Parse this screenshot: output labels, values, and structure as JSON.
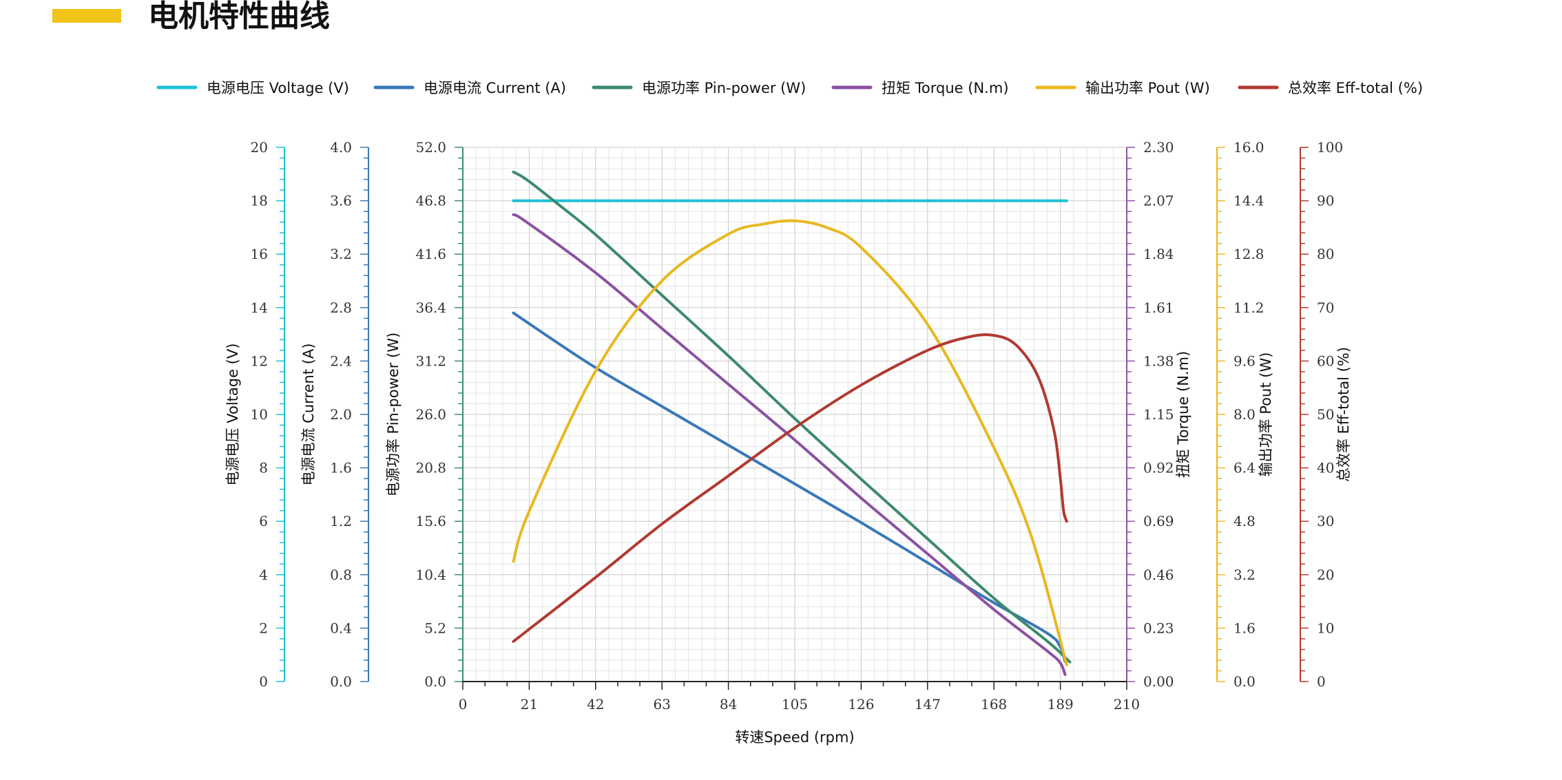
{
  "page": {
    "title": "电机特性曲线",
    "title_bar_color": "#f0c419"
  },
  "chart_data": {
    "type": "line",
    "xlabel": "转速Speed (rpm)",
    "xlim": [
      0,
      210
    ],
    "xticks": [
      "0",
      "21",
      "42",
      "63",
      "84",
      "105",
      "126",
      "147",
      "168",
      "189",
      "210"
    ],
    "grid": true,
    "legend_position": "top",
    "axes": [
      {
        "id": "voltage",
        "label": "电源电压 Voltage (V)",
        "side": "left",
        "min": 0,
        "max": 20,
        "color": "#1ec0d3",
        "ticks": [
          "0",
          "2",
          "4",
          "6",
          "8",
          "10",
          "12",
          "14",
          "16",
          "18",
          "20"
        ]
      },
      {
        "id": "current",
        "label": "电源电流 Current (A)",
        "side": "left",
        "min": 0,
        "max": 4.0,
        "color": "#3a78b8",
        "ticks": [
          "0.0",
          "0.4",
          "0.8",
          "1.2",
          "1.6",
          "2.0",
          "2.4",
          "2.8",
          "3.2",
          "3.6",
          "4.0"
        ]
      },
      {
        "id": "pin",
        "label": "电源功率 Pin-power (W)",
        "side": "left",
        "min": 0,
        "max": 52,
        "color": "#3d8a6e",
        "ticks": [
          "0.0",
          "5.2",
          "10.4",
          "15.6",
          "20.8",
          "26.0",
          "31.2",
          "36.4",
          "41.6",
          "46.8",
          "52.0"
        ]
      },
      {
        "id": "torque",
        "label": "扭矩 Torque (N.m)",
        "side": "right",
        "min": 0,
        "max": 2.3,
        "color": "#8b52a0",
        "ticks": [
          "0.00",
          "0.23",
          "0.46",
          "0.69",
          "0.92",
          "1.15",
          "1.38",
          "1.61",
          "1.84",
          "2.07",
          "2.30"
        ]
      },
      {
        "id": "pout",
        "label": "输出功率 Pout (W)",
        "side": "right",
        "min": 0,
        "max": 16,
        "color": "#e8b820",
        "ticks": [
          "0.0",
          "1.6",
          "3.2",
          "4.8",
          "6.4",
          "8.0",
          "9.6",
          "11.2",
          "12.8",
          "14.4",
          "16.0"
        ]
      },
      {
        "id": "eff",
        "label": "总效率 Eff-total (%)",
        "side": "right",
        "min": 0,
        "max": 100,
        "color": "#b03a30",
        "ticks": [
          "0",
          "10",
          "20",
          "30",
          "40",
          "50",
          "60",
          "70",
          "80",
          "90",
          "100"
        ]
      }
    ],
    "series": [
      {
        "name": "电源电压 Voltage (V)",
        "axis": "voltage",
        "color": "#1ec0d3",
        "x": [
          16,
          60,
          100,
          140,
          180,
          191
        ],
        "y": [
          18,
          18,
          18,
          18,
          18,
          18
        ]
      },
      {
        "name": "电源电流 Current (A)",
        "axis": "current",
        "color": "#3a78b8",
        "x": [
          16,
          40,
          63,
          84,
          105,
          126,
          147,
          168,
          185,
          189,
          190.5
        ],
        "y": [
          2.76,
          2.38,
          2.06,
          1.77,
          1.48,
          1.19,
          0.89,
          0.59,
          0.36,
          0.26,
          0.15
        ]
      },
      {
        "name": "电源功率 Pin-power (W)",
        "axis": "pin",
        "color": "#3d8a6e",
        "x": [
          16,
          20,
          30,
          42,
          63,
          84,
          105,
          126,
          147,
          168,
          185,
          190,
          192
        ],
        "y": [
          49.6,
          48.9,
          46.5,
          43.5,
          37.6,
          31.7,
          25.6,
          19.7,
          13.9,
          8.1,
          3.9,
          2.5,
          1.9
        ]
      },
      {
        "name": "扭矩 Torque (N.m)",
        "axis": "torque",
        "color": "#8b52a0",
        "x": [
          16,
          20,
          42,
          63,
          84,
          105,
          126,
          147,
          168,
          185,
          189,
          190.5
        ],
        "y": [
          2.01,
          1.98,
          1.76,
          1.52,
          1.28,
          1.04,
          0.79,
          0.55,
          0.31,
          0.13,
          0.08,
          0.03
        ]
      },
      {
        "name": "输出功率 Pout (W)",
        "axis": "pout",
        "color": "#e8b820",
        "x": [
          16,
          21,
          42,
          63,
          84,
          95,
          105,
          115,
          126,
          147,
          168,
          180,
          191
        ],
        "y": [
          3.6,
          5.1,
          9.3,
          12.0,
          13.4,
          13.7,
          13.8,
          13.6,
          13.0,
          10.7,
          7.0,
          4.3,
          0.5
        ]
      },
      {
        "name": "总效率 Eff-total (%)",
        "axis": "eff",
        "color": "#b03a30",
        "x": [
          16,
          42,
          63,
          84,
          105,
          126,
          147,
          160,
          168,
          175,
          182,
          187,
          189,
          190,
          191
        ],
        "y": [
          7.5,
          19.5,
          29.5,
          38.5,
          47.5,
          55.5,
          62.0,
          64.5,
          64.8,
          63.0,
          57.0,
          47.0,
          38.0,
          32.0,
          30.0
        ]
      }
    ]
  }
}
